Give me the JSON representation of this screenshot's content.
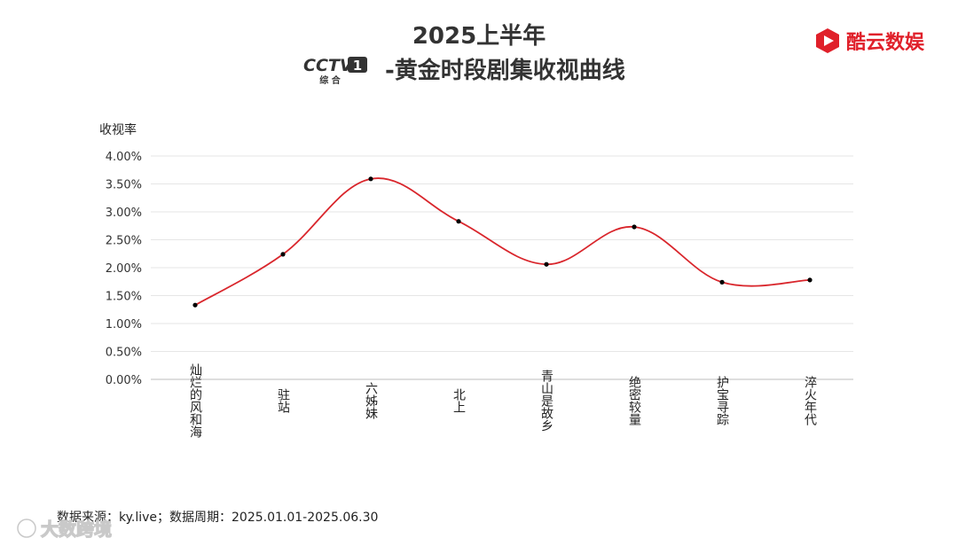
{
  "header": {
    "title_line1": "2025上半年",
    "title_line2": "-黄金时段剧集收视曲线",
    "channel_logo_text": "CCTV",
    "channel_number": "1",
    "channel_subtitle": "综 合"
  },
  "brand": {
    "name": "酷云数娱",
    "color": "#e0202a"
  },
  "footer": {
    "source": "数据来源：ky.live；数据周期：2025.01.01-2025.06.30"
  },
  "watermark": {
    "text": "大数跨境"
  },
  "chart_data": {
    "type": "line",
    "ylabel": "收视率",
    "ylim": [
      0,
      0.04
    ],
    "yticks": [
      "0.00%",
      "0.50%",
      "1.00%",
      "1.50%",
      "2.00%",
      "2.50%",
      "3.00%",
      "3.50%",
      "4.00%"
    ],
    "categories": [
      "灿烂的风和海",
      "驻站",
      "六姊妹",
      "北上",
      "青山是故乡",
      "绝密较量",
      "护宝寻踪",
      "淬火年代"
    ],
    "series": [
      {
        "values": [
          0.0133,
          0.0224,
          0.0359,
          0.0283,
          0.0206,
          0.0273,
          0.0174,
          0.0178
        ],
        "line_color": "#d9262c",
        "marker_color": "#000000"
      }
    ],
    "grid": true,
    "legend": "none"
  }
}
